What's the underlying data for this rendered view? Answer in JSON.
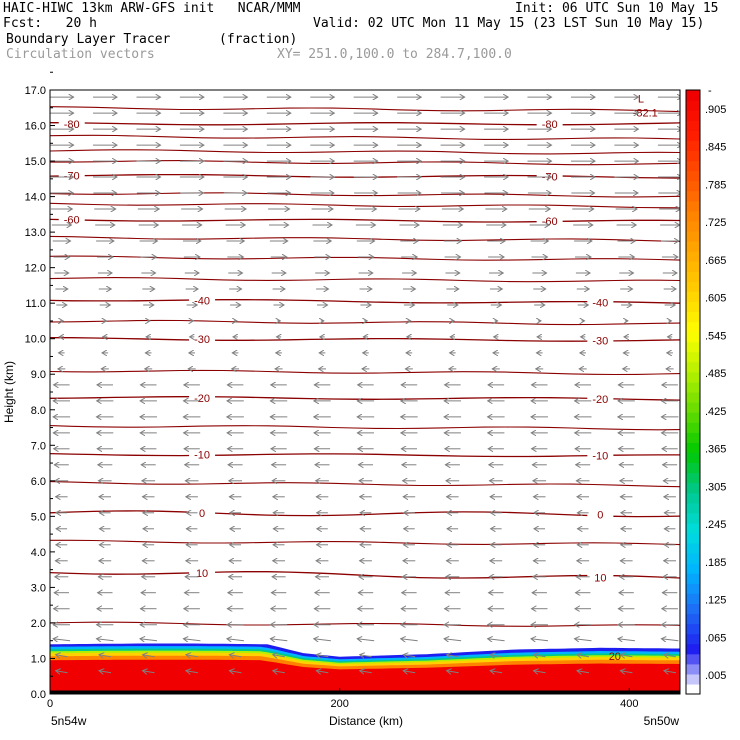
{
  "header": {
    "line1_left": "HAIC-HIWC 13km ARW-GFS init   NCAR/MMM",
    "line1_right": "Init: 06 UTC Sun 10 May 15",
    "line2_left": "Fcst:   20 h",
    "line2_right": "Valid: 02 UTC Mon 11 May 15 (23 LST Sun 10 May 15)",
    "line3_left": "Boundary Layer Tracer",
    "line3_units": "(fraction)",
    "line4_left": "Circulation vectors",
    "line4_xy": "XY= 251.0,100.0 to 284.7,100.0"
  },
  "chart_data": {
    "type": "heatmap",
    "xlabel": "Distance (km)",
    "ylabel": "Height (km)",
    "xlim": [
      0,
      435
    ],
    "ylim": [
      0,
      17
    ],
    "x_ticks": [
      0,
      200,
      400
    ],
    "y_ticks": [
      "0.0",
      "1.0",
      "2.0",
      "3.0",
      "4.0",
      "5.0",
      "6.0",
      "7.0",
      "8.0",
      "9.0",
      "10.0",
      "11.0",
      "12.0",
      "13.0",
      "14.0",
      "15.0",
      "16.0",
      "17.0"
    ],
    "endpoint_labels": {
      "left": "5n54w",
      "right": "5n50w"
    },
    "colorbar": {
      "labels": [
        ".005",
        ".065",
        ".125",
        ".185",
        ".245",
        ".305",
        ".365",
        ".425",
        ".485",
        ".545",
        ".605",
        ".665",
        ".725",
        ".785",
        ".845",
        ".905"
      ],
      "top_label": "-",
      "colors": [
        "#ffffff",
        "#1e1ef0",
        "#1e6ef5",
        "#00b4ff",
        "#00dcdc",
        "#00c88c",
        "#00c800",
        "#64dc00",
        "#b4f000",
        "#ffff00",
        "#ffd200",
        "#ffaa00",
        "#ff8200",
        "#ff5000",
        "#ff1e00",
        "#f00000"
      ]
    },
    "tracer_top_km": [
      [
        0,
        1.4
      ],
      [
        60,
        1.42
      ],
      [
        100,
        1.42
      ],
      [
        150,
        1.4
      ],
      [
        175,
        1.15
      ],
      [
        200,
        1.05
      ],
      [
        260,
        1.12
      ],
      [
        320,
        1.25
      ],
      [
        380,
        1.3
      ],
      [
        435,
        1.28
      ]
    ],
    "temperature_contours": [
      {
        "value": 10,
        "label": "10",
        "levels_km": [
          [
            0,
            3.45
          ],
          [
            435,
            3.25
          ]
        ]
      },
      {
        "value": 0,
        "label": "0",
        "levels_km": [
          [
            0,
            5.1
          ],
          [
            435,
            5.05
          ]
        ]
      },
      {
        "value": -10,
        "label": "-10",
        "levels_km": [
          [
            0,
            6.75
          ],
          [
            435,
            6.7
          ]
        ]
      },
      {
        "value": -20,
        "label": "-20",
        "levels_km": [
          [
            0,
            8.35
          ],
          [
            435,
            8.3
          ]
        ]
      },
      {
        "value": -30,
        "label": "-30",
        "levels_km": [
          [
            0,
            10.0
          ],
          [
            435,
            9.95
          ]
        ]
      },
      {
        "value": -40,
        "label": "-40",
        "levels_km": [
          [
            0,
            11.1
          ],
          [
            435,
            11.0
          ]
        ]
      },
      {
        "value": -60,
        "label": "-60",
        "levels_km": [
          [
            0,
            13.35
          ],
          [
            435,
            13.3
          ]
        ]
      },
      {
        "value": -70,
        "label": "-70",
        "levels_km": [
          [
            0,
            14.6
          ],
          [
            435,
            14.55
          ]
        ]
      },
      {
        "value": -80,
        "label": "-80",
        "levels_km": [
          [
            0,
            16.05
          ],
          [
            435,
            16.05
          ]
        ]
      }
    ],
    "extra_contour_label": "20",
    "extreme_label": "-82.1",
    "extreme_marker": "L",
    "vectors": {
      "upper_easterly_above_km": 10.8,
      "lower_westerly_below_km": 10.3,
      "note_free": true
    }
  },
  "colors": {
    "contour": "#8b0000",
    "vector": "#808080",
    "tracer_core": "#f00000"
  }
}
